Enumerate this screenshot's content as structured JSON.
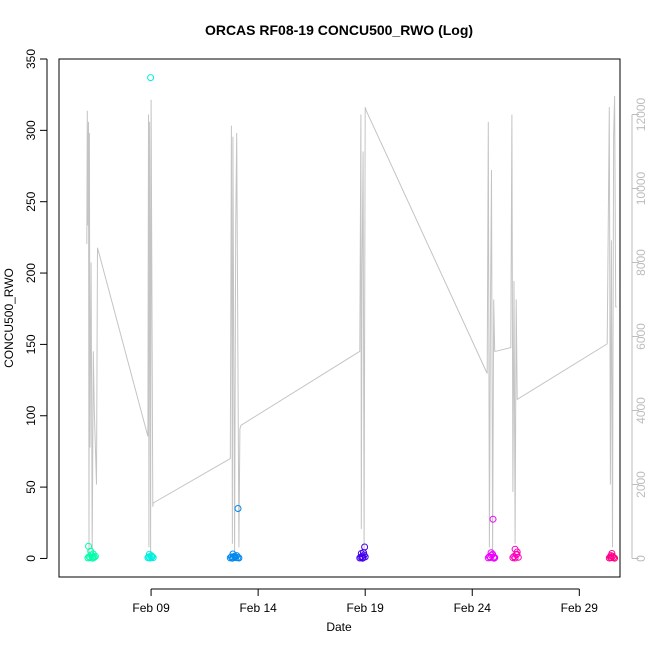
{
  "chart_data": {
    "type": "scatter",
    "title": "ORCAS RF08-19 CONCU500_RWO (Log)",
    "xlabel": "Date",
    "ylabel": "CONCU500_RWO",
    "x_ticks": [
      "Feb 09",
      "Feb 14",
      "Feb 19",
      "Feb 24",
      "Feb 29"
    ],
    "x_tick_days": [
      9,
      14,
      19,
      24,
      29
    ],
    "xlim": [
      4.7,
      30.9
    ],
    "ylim": [
      -13,
      350
    ],
    "y_ticks": [
      0,
      50,
      100,
      150,
      200,
      250,
      300,
      350
    ],
    "y2lim": [
      -500,
      13500
    ],
    "y2_ticks": [
      0,
      2000,
      4000,
      6000,
      8000,
      10000,
      12000
    ],
    "grid": false,
    "legend": "none",
    "series": [
      {
        "color": "#00ffaa",
        "x": [
          6.05,
          6.1,
          6.15,
          6.2,
          6.25,
          6.3,
          6.35,
          6.4,
          6.08,
          6.18,
          6.28,
          6.33
        ],
        "y": [
          0.4,
          1.2,
          0.6,
          2.5,
          1.0,
          3.1,
          0.8,
          1.5,
          8.5,
          5.0,
          0.2,
          0.9
        ]
      },
      {
        "color": "#00f0e0",
        "x": [
          8.85,
          8.9,
          8.95,
          9.0,
          9.05,
          9.1,
          8.92,
          9.02,
          8.98
        ],
        "y": [
          0.5,
          1.0,
          0.3,
          2.0,
          1.4,
          0.6,
          3.0,
          0.8,
          337
        ]
      },
      {
        "color": "#0088ee",
        "x": [
          12.7,
          12.75,
          12.8,
          12.85,
          12.9,
          12.95,
          13.0,
          13.05,
          13.1,
          12.82,
          12.92,
          13.06
        ],
        "y": [
          0.4,
          1.1,
          0.2,
          0.9,
          1.6,
          0.5,
          2.0,
          0.7,
          0.3,
          3.1,
          1.3,
          35
        ]
      },
      {
        "color": "#4400ee",
        "x": [
          18.75,
          18.8,
          18.85,
          18.9,
          18.95,
          19.0,
          18.82,
          18.92,
          18.97,
          18.88
        ],
        "y": [
          0.3,
          0.9,
          1.5,
          0.6,
          2.4,
          1.1,
          3.5,
          4.1,
          8.0,
          0.2
        ]
      },
      {
        "color": "#ee00ff",
        "x": [
          24.75,
          24.8,
          24.85,
          24.9,
          24.95,
          25.0,
          25.05,
          24.88,
          24.97,
          25.02
        ],
        "y": [
          0.4,
          1.3,
          0.7,
          2.2,
          3.0,
          1.0,
          0.6,
          4.0,
          27.5,
          0.2
        ]
      },
      {
        "color": "#ff00bb",
        "x": [
          25.9,
          25.95,
          26.0,
          26.05,
          26.1,
          26.15,
          26.0,
          26.08
        ],
        "y": [
          0.5,
          1.4,
          0.3,
          2.6,
          4.5,
          0.8,
          6.5,
          3.0
        ]
      },
      {
        "color": "#ff0088",
        "x": [
          30.4,
          30.45,
          30.5,
          30.55,
          30.6,
          30.65,
          30.52,
          30.48
        ],
        "y": [
          0.3,
          0.9,
          0.5,
          1.5,
          0.7,
          0.2,
          3.5,
          2.0
        ]
      }
    ],
    "trace": {
      "color": "#c4c4c4",
      "axis": "right",
      "x": [
        6.0,
        6.02,
        6.05,
        6.08,
        6.1,
        6.12,
        6.15,
        6.2,
        6.25,
        6.3,
        6.35,
        6.45,
        6.5,
        8.85,
        8.88,
        8.9,
        8.93,
        8.95,
        8.98,
        9.0,
        9.05,
        9.08,
        9.1,
        12.7,
        12.75,
        12.8,
        12.82,
        12.85,
        12.9,
        12.95,
        13.0,
        13.05,
        13.1,
        13.15,
        13.2,
        18.75,
        18.8,
        18.82,
        18.85,
        18.9,
        18.95,
        19.0,
        19.05,
        24.7,
        24.75,
        24.8,
        24.85,
        24.9,
        24.95,
        25.0,
        25.05,
        25.1,
        25.8,
        25.85,
        25.9,
        25.95,
        26.0,
        26.05,
        26.1,
        30.3,
        30.4,
        30.45,
        30.5,
        30.55,
        30.6,
        30.65,
        30.7,
        30.75
      ],
      "y": [
        8500,
        12100,
        9000,
        11800,
        0,
        11500,
        3000,
        8000,
        200,
        5600,
        4000,
        2000,
        8400,
        3300,
        12000,
        300,
        11800,
        8200,
        0,
        12400,
        6000,
        1400,
        1500,
        2700,
        11700,
        400,
        11400,
        7500,
        100,
        8900,
        11500,
        6000,
        300,
        3500,
        3600,
        5600,
        12000,
        800,
        7500,
        11000,
        200,
        12200,
        12100,
        5000,
        11800,
        300,
        6800,
        10500,
        100,
        7000,
        5600,
        5600,
        5700,
        12000,
        1800,
        7500,
        400,
        7000,
        4300,
        5800,
        12200,
        2000,
        8600,
        300,
        11400,
        12500,
        6800,
        6800
      ]
    }
  }
}
